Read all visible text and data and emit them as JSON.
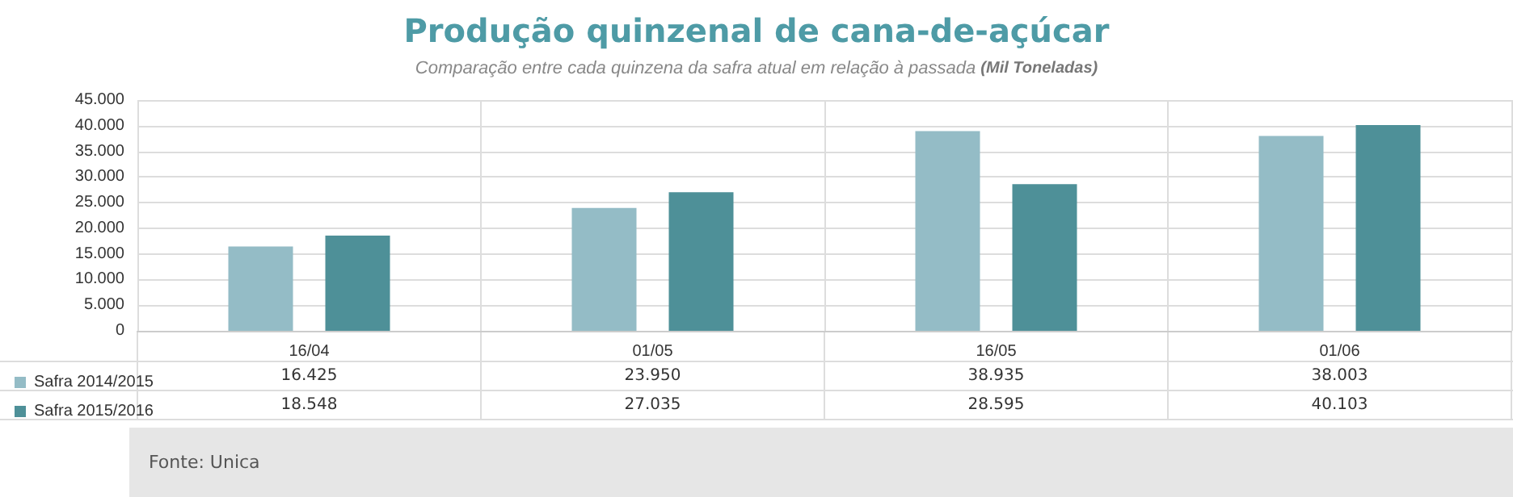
{
  "chart_data": {
    "type": "bar",
    "title": "Produção quinzenal de cana-de-açúcar",
    "subtitle": "Comparação entre cada quinzena da safra atual em relação à passada (Mil Toneladas)",
    "categories": [
      "16/04",
      "01/05",
      "16/05",
      "01/06"
    ],
    "series": [
      {
        "name": "Safra 2014/2015",
        "color": "#94bcc6",
        "values": [
          16425,
          23950,
          38935,
          38003
        ],
        "value_labels": [
          "16.425",
          "23.950",
          "38.935",
          "38.003"
        ]
      },
      {
        "name": "Safra 2015/2016",
        "color": "#4e9098",
        "values": [
          18548,
          27035,
          28595,
          40103
        ],
        "value_labels": [
          "18.548",
          "27.035",
          "28.595",
          "40.103"
        ]
      }
    ],
    "ylim": [
      0,
      45000
    ],
    "yticks": [
      0,
      {
        "value": 5000,
        "label": "5.000"
      },
      {
        "value": 10000,
        "label": "10.000"
      },
      {
        "value": 15000,
        "label": "15.000"
      },
      {
        "value": 20000,
        "label": "20.000"
      },
      {
        "value": 25000,
        "label": "25.000"
      },
      {
        "value": 30000,
        "label": "30.000"
      },
      {
        "value": 35000,
        "label": "35.000"
      },
      {
        "value": 40000,
        "label": "40.000"
      },
      {
        "value": 45000,
        "label": "45.000"
      }
    ],
    "grid": true,
    "legend": "bottom left",
    "annotations": [
      "Fonte: Unica"
    ]
  }
}
